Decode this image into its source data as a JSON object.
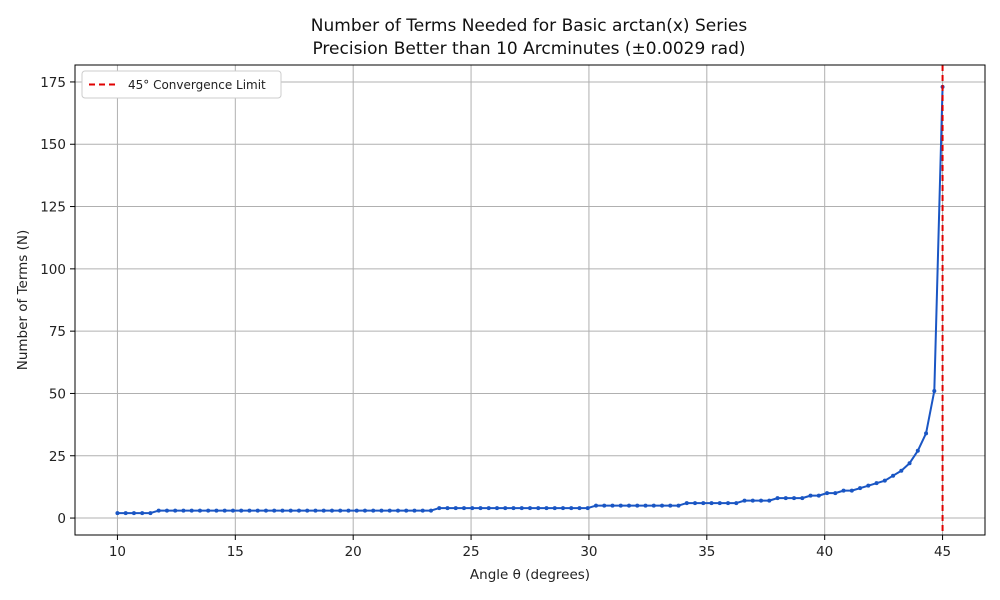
{
  "chart_data": {
    "type": "line",
    "title_line1": "Number of Terms Needed for Basic arctan(x) Series",
    "title_line2": "Precision Better than 10 Arcminutes (±0.0029 rad)",
    "xlabel": "Angle θ (degrees)",
    "ylabel": "Number of Terms (N)",
    "xlim": [
      8.2,
      46.8
    ],
    "ylim": [
      -6.8,
      181.8
    ],
    "xticks": [
      10,
      15,
      20,
      25,
      30,
      35,
      40,
      45
    ],
    "yticks": [
      0,
      25,
      50,
      75,
      100,
      125,
      150,
      175
    ],
    "grid": true,
    "legend_position": "upper-left",
    "series": [
      {
        "name": "",
        "color": "#1a56c4",
        "marker": "circle",
        "points": [
          [
            10.0,
            2
          ],
          [
            10.35,
            2
          ],
          [
            10.7,
            2
          ],
          [
            11.05,
            2
          ],
          [
            11.4,
            2
          ],
          [
            11.75,
            3
          ],
          [
            12.1,
            3
          ],
          [
            12.45,
            3
          ],
          [
            12.8,
            3
          ],
          [
            13.15,
            3
          ],
          [
            13.5,
            3
          ],
          [
            13.85,
            3
          ],
          [
            14.2,
            3
          ],
          [
            14.55,
            3
          ],
          [
            14.9,
            3
          ],
          [
            15.25,
            3
          ],
          [
            15.6,
            3
          ],
          [
            15.95,
            3
          ],
          [
            16.3,
            3
          ],
          [
            16.65,
            3
          ],
          [
            17.0,
            3
          ],
          [
            17.35,
            3
          ],
          [
            17.7,
            3
          ],
          [
            18.05,
            3
          ],
          [
            18.4,
            3
          ],
          [
            18.75,
            3
          ],
          [
            19.1,
            3
          ],
          [
            19.45,
            3
          ],
          [
            19.8,
            3
          ],
          [
            20.15,
            3
          ],
          [
            20.5,
            3
          ],
          [
            20.85,
            3
          ],
          [
            21.2,
            3
          ],
          [
            21.55,
            3
          ],
          [
            21.9,
            3
          ],
          [
            22.25,
            3
          ],
          [
            22.6,
            3
          ],
          [
            22.95,
            3
          ],
          [
            23.3,
            3
          ],
          [
            23.65,
            4
          ],
          [
            24.0,
            4
          ],
          [
            24.35,
            4
          ],
          [
            24.7,
            4
          ],
          [
            25.05,
            4
          ],
          [
            25.4,
            4
          ],
          [
            25.75,
            4
          ],
          [
            26.1,
            4
          ],
          [
            26.45,
            4
          ],
          [
            26.8,
            4
          ],
          [
            27.15,
            4
          ],
          [
            27.5,
            4
          ],
          [
            27.85,
            4
          ],
          [
            28.2,
            4
          ],
          [
            28.55,
            4
          ],
          [
            28.9,
            4
          ],
          [
            29.25,
            4
          ],
          [
            29.6,
            4
          ],
          [
            29.95,
            4
          ],
          [
            30.3,
            5
          ],
          [
            30.65,
            5
          ],
          [
            31.0,
            5
          ],
          [
            31.35,
            5
          ],
          [
            31.7,
            5
          ],
          [
            32.05,
            5
          ],
          [
            32.4,
            5
          ],
          [
            32.75,
            5
          ],
          [
            33.1,
            5
          ],
          [
            33.45,
            5
          ],
          [
            33.8,
            5
          ],
          [
            34.15,
            6
          ],
          [
            34.5,
            6
          ],
          [
            34.85,
            6
          ],
          [
            35.2,
            6
          ],
          [
            35.55,
            6
          ],
          [
            35.9,
            6
          ],
          [
            36.25,
            6
          ],
          [
            36.6,
            7
          ],
          [
            36.95,
            7
          ],
          [
            37.3,
            7
          ],
          [
            37.65,
            7
          ],
          [
            38.0,
            8
          ],
          [
            38.35,
            8
          ],
          [
            38.7,
            8
          ],
          [
            39.05,
            8
          ],
          [
            39.4,
            9
          ],
          [
            39.75,
            9
          ],
          [
            40.1,
            10
          ],
          [
            40.45,
            10
          ],
          [
            40.8,
            11
          ],
          [
            41.15,
            11
          ],
          [
            41.5,
            12
          ],
          [
            41.85,
            13
          ],
          [
            42.2,
            14
          ],
          [
            42.55,
            15
          ],
          [
            42.9,
            17
          ],
          [
            43.25,
            19
          ],
          [
            43.6,
            22
          ],
          [
            43.95,
            27
          ],
          [
            44.3,
            34
          ],
          [
            44.65,
            51
          ],
          [
            45.0,
            173
          ]
        ]
      }
    ],
    "vline": {
      "x": 45,
      "label": "45° Convergence Limit",
      "color": "#e00000",
      "style": "dashed"
    }
  }
}
